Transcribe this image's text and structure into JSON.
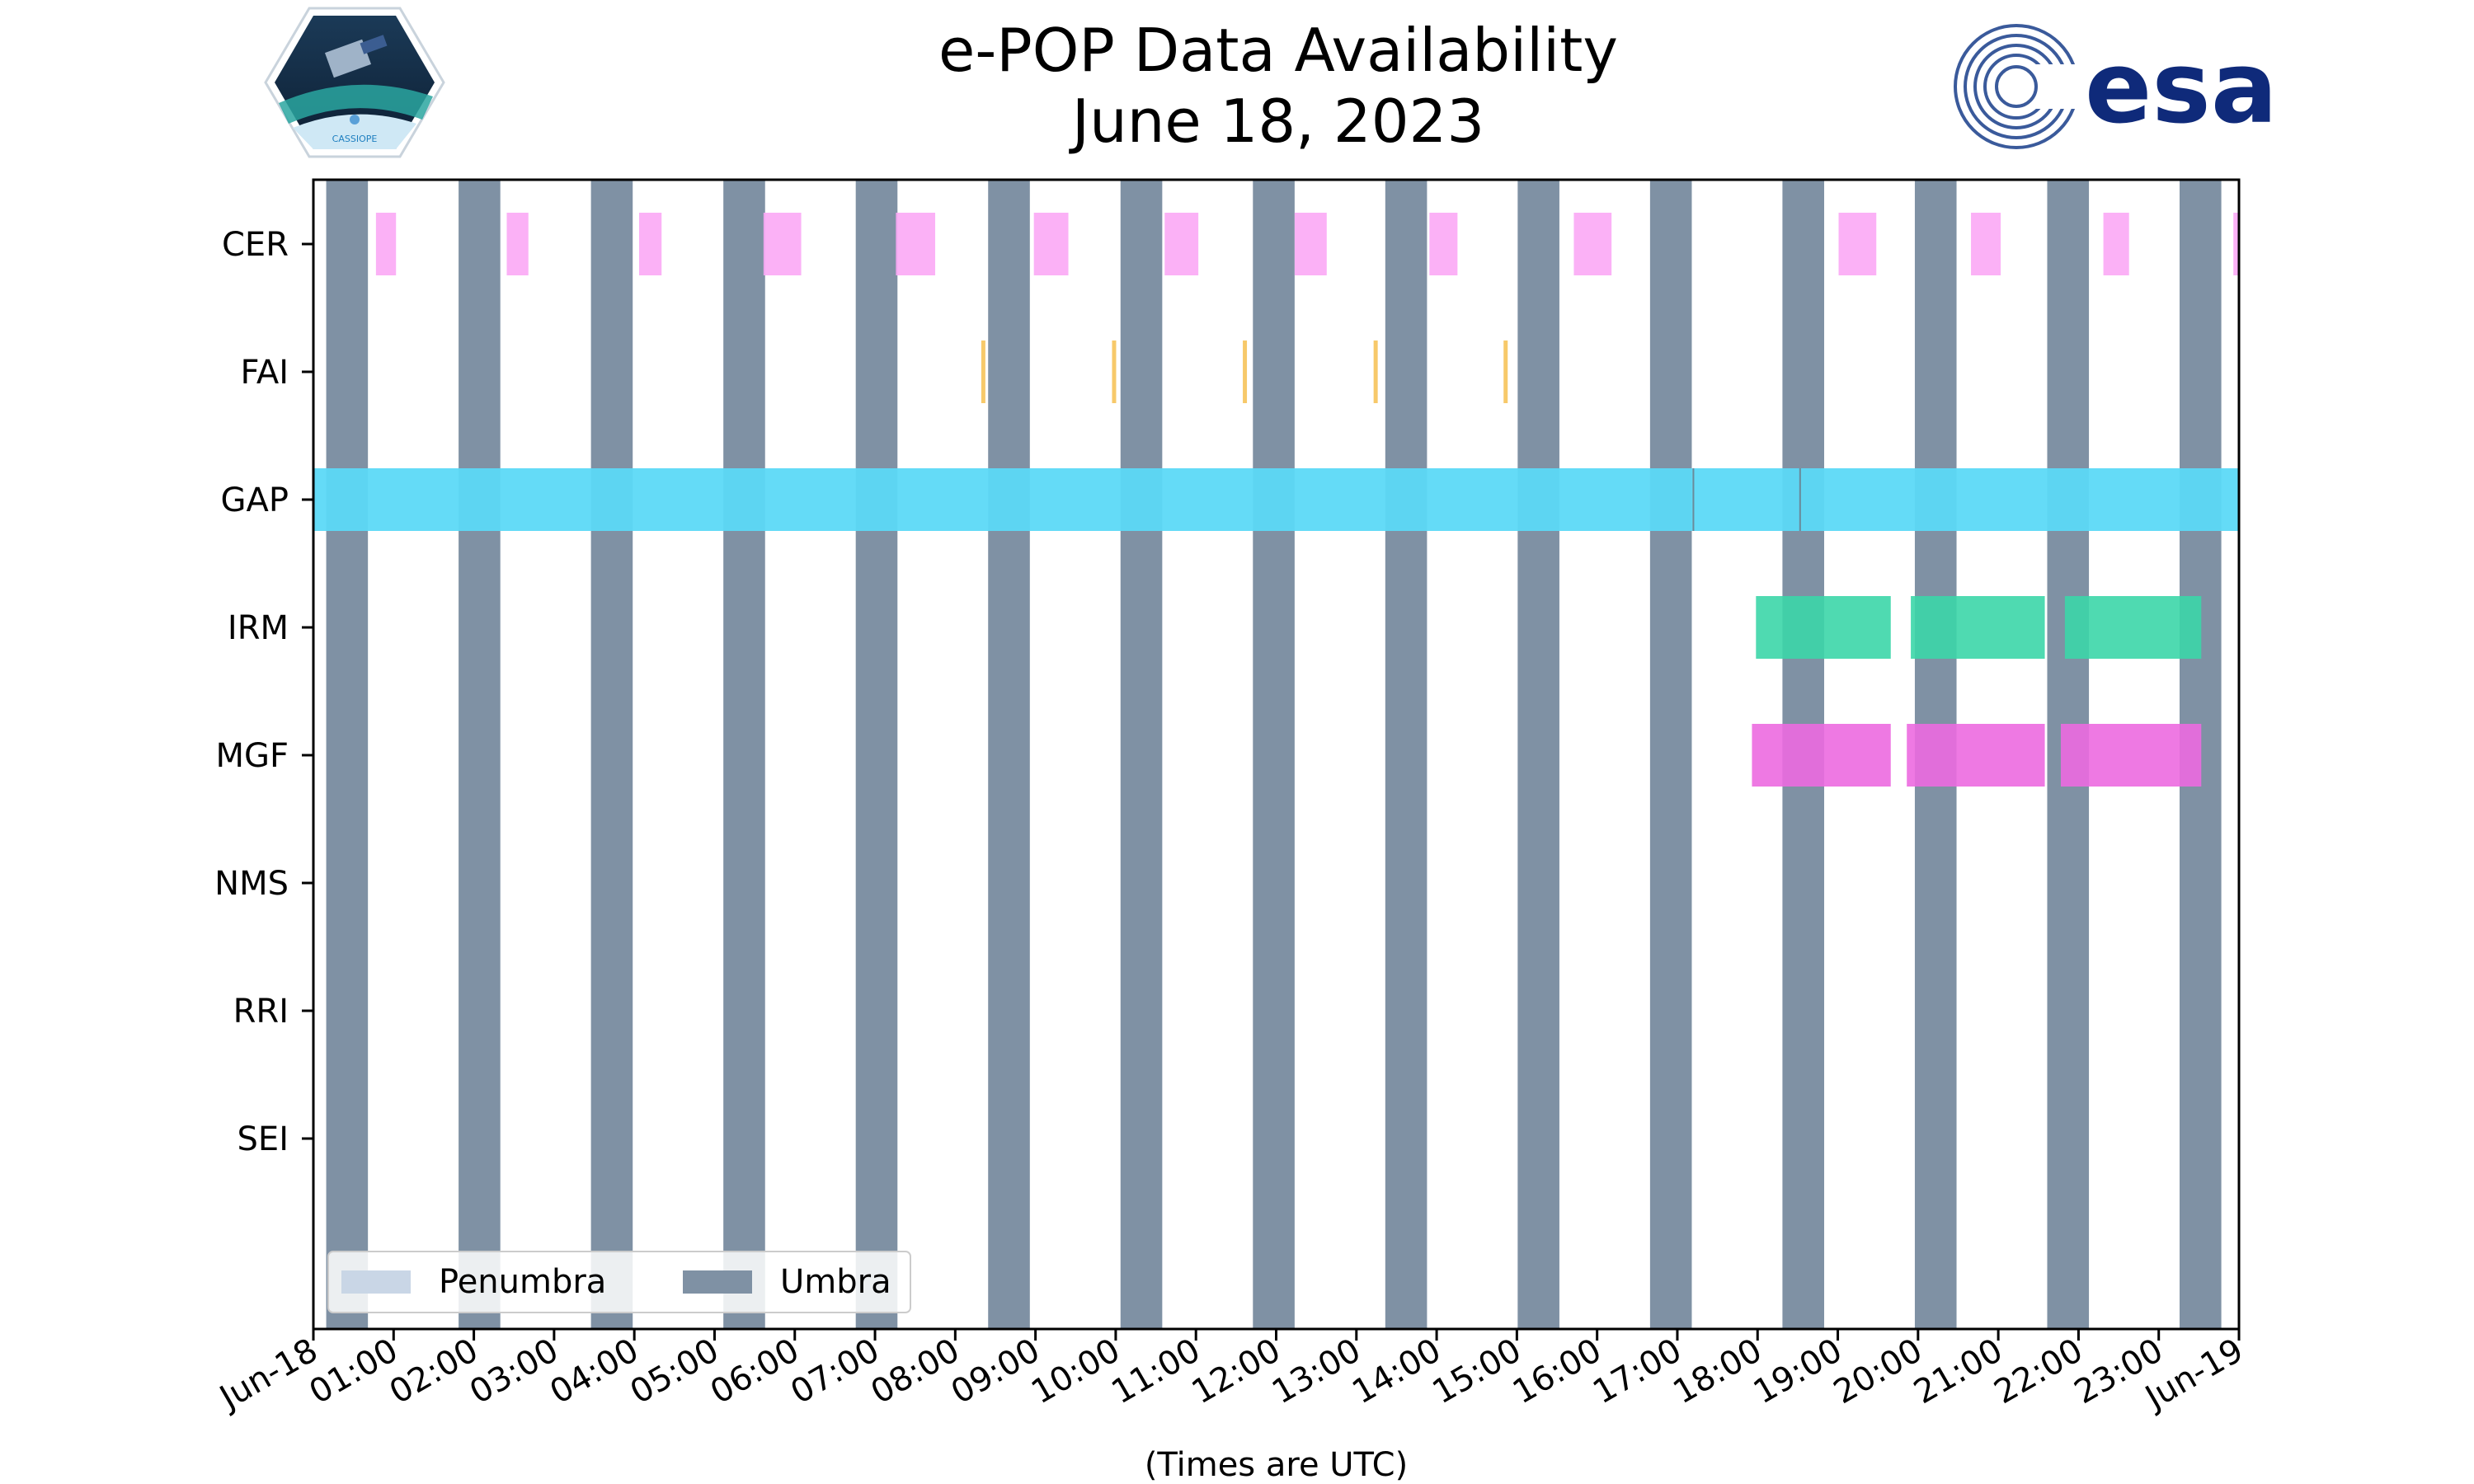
{
  "header": {
    "title_line1": "e-POP Data Availability",
    "title_line2": "June 18, 2023",
    "logo_left_text": "CASSIOPE",
    "logo_right_text": "esa"
  },
  "chart_data": {
    "type": "timeline",
    "title": "e-POP Data Availability June 18, 2023",
    "xlabel": "(Times are UTC)",
    "ylabel": "",
    "xlim_hours": [
      0,
      24
    ],
    "x_tick_labels": [
      "Jun-18",
      "01:00",
      "02:00",
      "03:00",
      "04:00",
      "05:00",
      "06:00",
      "07:00",
      "08:00",
      "09:00",
      "10:00",
      "11:00",
      "12:00",
      "13:00",
      "14:00",
      "15:00",
      "16:00",
      "17:00",
      "18:00",
      "19:00",
      "20:00",
      "21:00",
      "22:00",
      "23:00",
      "Jun-19"
    ],
    "rows": [
      "CER",
      "FAI",
      "GAP",
      "IRM",
      "MGF",
      "NMS",
      "RRI",
      "SEI"
    ],
    "colors": {
      "umbra": "#7f91a4",
      "penumbra": "#c9d6e6",
      "CER": "#fba8f5",
      "FAI": "#f7c96a",
      "GAP": "#5cd9f7",
      "IRM": "#3cd6a8",
      "MGF": "#ec6ae0"
    },
    "umbra_intervals_hours": [
      [
        0.16,
        0.68
      ],
      [
        1.81,
        2.33
      ],
      [
        3.46,
        3.98
      ],
      [
        5.11,
        5.63
      ],
      [
        6.76,
        7.28
      ],
      [
        8.41,
        8.93
      ],
      [
        10.06,
        10.58
      ],
      [
        11.71,
        12.23
      ],
      [
        13.36,
        13.88
      ],
      [
        15.01,
        15.53
      ],
      [
        16.66,
        17.18
      ],
      [
        18.31,
        18.83
      ],
      [
        19.96,
        20.48
      ],
      [
        21.61,
        22.13
      ],
      [
        23.26,
        23.78
      ]
    ],
    "series": [
      {
        "name": "CER",
        "kind": "intervals",
        "values": [
          [
            0.78,
            1.03
          ],
          [
            2.41,
            2.68
          ],
          [
            4.06,
            4.34
          ],
          [
            5.61,
            6.08
          ],
          [
            7.26,
            7.75
          ],
          [
            8.98,
            9.41
          ],
          [
            10.61,
            11.03
          ],
          [
            12.23,
            12.63
          ],
          [
            13.91,
            14.26
          ],
          [
            15.71,
            16.18
          ],
          [
            19.01,
            19.48
          ],
          [
            20.66,
            21.03
          ],
          [
            22.31,
            22.63
          ],
          [
            23.93,
            24.0
          ]
        ]
      },
      {
        "name": "FAI",
        "kind": "instants",
        "values": [
          8.35,
          9.98,
          11.61,
          13.24,
          14.86
        ]
      },
      {
        "name": "GAP",
        "kind": "intervals",
        "values": [
          [
            0.0,
            24.0
          ]
        ]
      },
      {
        "name": "IRM",
        "kind": "intervals",
        "values": [
          [
            17.98,
            19.66
          ],
          [
            19.91,
            21.58
          ],
          [
            21.83,
            23.53
          ]
        ]
      },
      {
        "name": "MGF",
        "kind": "intervals",
        "values": [
          [
            17.93,
            19.66
          ],
          [
            19.86,
            21.58
          ],
          [
            21.78,
            23.53
          ]
        ]
      },
      {
        "name": "NMS",
        "kind": "intervals",
        "values": []
      },
      {
        "name": "RRI",
        "kind": "intervals",
        "values": []
      },
      {
        "name": "SEI",
        "kind": "intervals",
        "values": []
      }
    ],
    "gap_markers_hours": [
      17.2,
      18.53
    ],
    "legend": {
      "location": "lower-left",
      "entries": [
        {
          "label": "Penumbra",
          "color_key": "penumbra"
        },
        {
          "label": "Umbra",
          "color_key": "umbra"
        }
      ]
    }
  }
}
